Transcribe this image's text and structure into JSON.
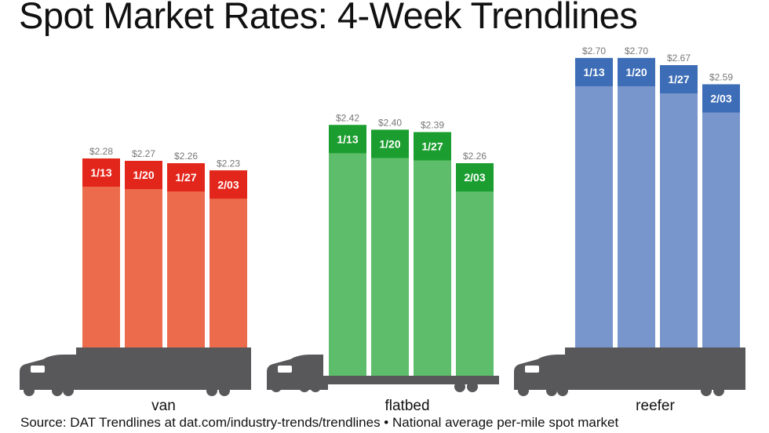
{
  "title": "Spot Market Rates: 4-Week Trendlines",
  "source": "Source: DAT Trendlines at dat.com/industry-trends/trendlines • National average per-mile spot market",
  "chart_data": {
    "type": "bar",
    "title": "Spot Market Rates: 4-Week Trendlines",
    "xlabel": "",
    "ylabel": "",
    "unit": "$ per mile",
    "categories": [
      "1/13",
      "1/20",
      "1/27",
      "2/03"
    ],
    "groups": [
      {
        "name": "van",
        "values": [
          2.28,
          2.27,
          2.26,
          2.23
        ],
        "labels": [
          "$2.28",
          "$2.27",
          "$2.26",
          "$2.23"
        ],
        "colors": {
          "top": "#e3261b",
          "bar": "#ec6b4d"
        }
      },
      {
        "name": "flatbed",
        "values": [
          2.42,
          2.4,
          2.39,
          2.26
        ],
        "labels": [
          "$2.42",
          "$2.40",
          "$2.39",
          "$2.26"
        ],
        "colors": {
          "top": "#1b9e2f",
          "bar": "#5dbd6a"
        }
      },
      {
        "name": "reefer",
        "values": [
          2.7,
          2.7,
          2.67,
          2.59
        ],
        "labels": [
          "$2.70",
          "$2.70",
          "$2.67",
          "$2.59"
        ],
        "colors": {
          "top": "#3d6db6",
          "bar": "#7896cc"
        }
      }
    ],
    "grid": false
  }
}
